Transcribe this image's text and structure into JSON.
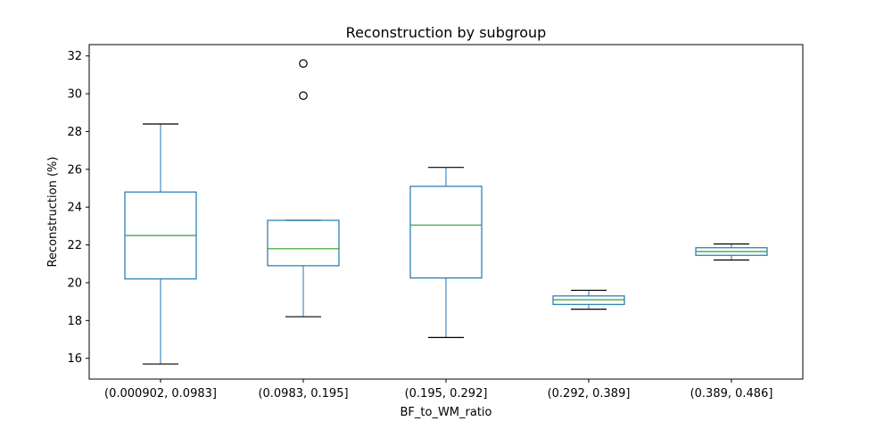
{
  "chart_data": {
    "type": "box",
    "title": "Reconstruction by subgroup",
    "xlabel": "BF_to_WM_ratio",
    "ylabel": "Reconstruction (%)",
    "ylim": [
      14.9,
      32.6
    ],
    "yticks": [
      16,
      18,
      20,
      22,
      24,
      26,
      28,
      30,
      32
    ],
    "grid": false,
    "colors": {
      "box": "#1f77b4",
      "median": "#2ca02c",
      "whisker": "#1f77b4",
      "cap": "#000000",
      "flier": "#000000",
      "frame": "#000000"
    },
    "categories": [
      "(0.000902, 0.0983]",
      "(0.0983, 0.195]",
      "(0.195, 0.292]",
      "(0.292, 0.389]",
      "(0.389, 0.486]"
    ],
    "boxes": [
      {
        "whislo": 15.7,
        "q1": 20.2,
        "med": 22.5,
        "q3": 24.8,
        "whishi": 28.4,
        "fliers": []
      },
      {
        "whislo": 18.2,
        "q1": 20.9,
        "med": 21.8,
        "q3": 23.3,
        "whishi": 23.3,
        "fliers": [
          29.9,
          31.6
        ]
      },
      {
        "whislo": 17.1,
        "q1": 20.25,
        "med": 23.05,
        "q3": 25.1,
        "whishi": 26.1,
        "fliers": []
      },
      {
        "whislo": 18.6,
        "q1": 18.85,
        "med": 19.1,
        "q3": 19.3,
        "whishi": 19.6,
        "fliers": []
      },
      {
        "whislo": 21.2,
        "q1": 21.45,
        "med": 21.65,
        "q3": 21.85,
        "whishi": 22.05,
        "fliers": []
      }
    ]
  }
}
